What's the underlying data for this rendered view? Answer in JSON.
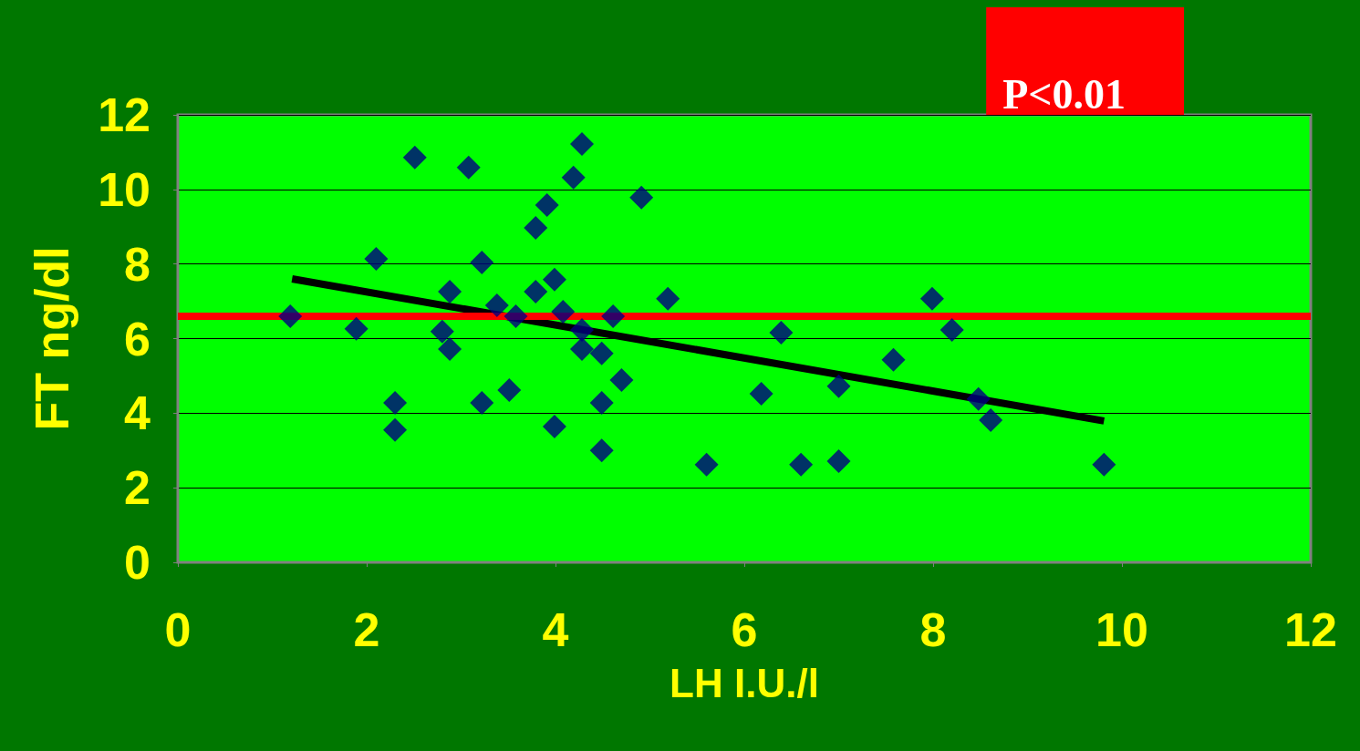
{
  "chart_data": {
    "type": "scatter",
    "xlabel": "LH I.U./l",
    "ylabel": "FT ng/dl",
    "annotations": [
      "P<0.01"
    ],
    "xlim": [
      0,
      12
    ],
    "xticks": [
      0,
      2,
      4,
      6,
      8,
      10,
      12
    ],
    "ylim": [
      0,
      12
    ],
    "yticks": [
      0,
      2,
      4,
      6,
      8,
      10,
      12
    ],
    "grid": "y",
    "marker": "diamond",
    "series": [
      {
        "color": "#000080",
        "x": [
          1.19,
          1.89,
          2.1,
          2.3,
          2.3,
          2.51,
          2.8,
          2.88,
          2.88,
          3.08,
          3.22,
          3.22,
          3.38,
          3.51,
          3.58,
          3.79,
          3.79,
          3.91,
          3.99,
          3.99,
          4.08,
          4.19,
          4.28,
          4.28,
          4.28,
          4.49,
          4.49,
          4.49,
          4.61,
          4.7,
          4.91,
          5.19,
          5.6,
          6.18,
          6.39,
          6.6,
          7.0,
          7.0,
          7.58,
          7.99,
          8.2,
          8.48,
          8.61,
          9.81
        ],
        "values": [
          6.6,
          6.26,
          8.14,
          4.28,
          3.55,
          10.86,
          6.19,
          7.26,
          5.72,
          10.59,
          8.04,
          4.28,
          6.89,
          4.62,
          6.6,
          8.97,
          7.26,
          9.58,
          7.58,
          3.64,
          6.72,
          10.32,
          11.22,
          6.23,
          5.72,
          5.6,
          4.28,
          3.0,
          6.6,
          4.89,
          9.78,
          7.07,
          2.62,
          4.52,
          6.16,
          2.62,
          4.72,
          2.71,
          5.43,
          7.07,
          6.23,
          4.38,
          3.81,
          2.62
        ]
      },
      {
        "type": "line",
        "color": "#000000",
        "marker": "none",
        "x": [
          1.21,
          9.81
        ],
        "values": [
          7.6,
          3.79
        ]
      }
    ],
    "ref_lines": [
      {
        "axis": "y",
        "value": 6.6,
        "color": "#ff0000"
      }
    ]
  }
}
